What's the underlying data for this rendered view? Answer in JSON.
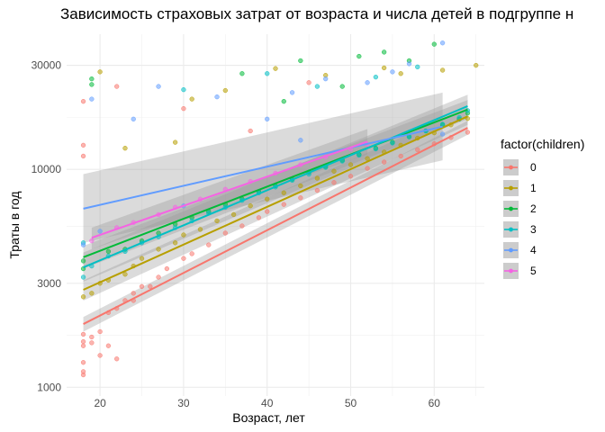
{
  "chart_data": {
    "type": "scatter",
    "title": "Зависимость страховых затрат от возраста и числа детей в подгруппе н",
    "xlabel": "Возраст, лет",
    "ylabel": "Траты в год",
    "xlim": [
      16,
      66
    ],
    "ylim_log10": [
      2.96,
      4.62
    ],
    "y_scale": "log10",
    "x_ticks": [
      20,
      30,
      40,
      50,
      60
    ],
    "x_tick_labels": [
      "20",
      "30",
      "40",
      "50",
      "60"
    ],
    "y_ticks": [
      1000,
      3000,
      10000,
      30000
    ],
    "y_tick_labels": [
      "1000",
      "3000",
      "10000",
      "30000"
    ],
    "grid": true,
    "legend": {
      "title": "factor(children)",
      "position": "right"
    },
    "series": [
      {
        "name": "0",
        "color": "#F8766D",
        "fit": {
          "x": [
            18,
            64
          ],
          "y": [
            1950,
            15500
          ]
        },
        "band": {
          "lower": [
            1800,
            14400
          ],
          "upper": [
            2100,
            16700
          ]
        },
        "points": [
          [
            18,
            1140
          ],
          [
            18,
            1180
          ],
          [
            18,
            1300
          ],
          [
            18,
            1550
          ],
          [
            18,
            1620
          ],
          [
            18,
            1750
          ],
          [
            18,
            11500
          ],
          [
            18,
            12900
          ],
          [
            18,
            20500
          ],
          [
            19,
            1600
          ],
          [
            19,
            1700
          ],
          [
            20,
            1800
          ],
          [
            20,
            1400
          ],
          [
            21,
            1550
          ],
          [
            21,
            2200
          ],
          [
            22,
            1350
          ],
          [
            22,
            2300
          ],
          [
            23,
            2500
          ],
          [
            24,
            2500
          ],
          [
            24,
            2700
          ],
          [
            25,
            2900
          ],
          [
            26,
            2900
          ],
          [
            27,
            3200
          ],
          [
            28,
            3500
          ],
          [
            30,
            3900
          ],
          [
            31,
            4100
          ],
          [
            33,
            4500
          ],
          [
            35,
            5100
          ],
          [
            37,
            5500
          ],
          [
            39,
            6000
          ],
          [
            40,
            6400
          ],
          [
            42,
            6900
          ],
          [
            44,
            7400
          ],
          [
            46,
            8000
          ],
          [
            48,
            8700
          ],
          [
            50,
            9300
          ],
          [
            52,
            10100
          ],
          [
            54,
            10800
          ],
          [
            56,
            11500
          ],
          [
            58,
            12300
          ],
          [
            60,
            13100
          ],
          [
            62,
            14000
          ],
          [
            64,
            14800
          ],
          [
            30,
            19000
          ],
          [
            45,
            25000
          ],
          [
            22,
            24000
          ],
          [
            38,
            15000
          ]
        ]
      },
      {
        "name": "1",
        "color": "#B79F00",
        "fit": {
          "x": [
            18,
            64
          ],
          "y": [
            2800,
            17500
          ]
        },
        "band": {
          "lower": [
            2500,
            16000
          ],
          "upper": [
            3100,
            19200
          ]
        },
        "points": [
          [
            18,
            2600
          ],
          [
            19,
            2700
          ],
          [
            20,
            28000
          ],
          [
            20,
            3000
          ],
          [
            21,
            3100
          ],
          [
            23,
            3300
          ],
          [
            24,
            3600
          ],
          [
            25,
            3900
          ],
          [
            27,
            4300
          ],
          [
            29,
            4600
          ],
          [
            30,
            5000
          ],
          [
            32,
            5300
          ],
          [
            34,
            5800
          ],
          [
            36,
            6200
          ],
          [
            38,
            6800
          ],
          [
            40,
            7300
          ],
          [
            42,
            7800
          ],
          [
            44,
            8400
          ],
          [
            46,
            9100
          ],
          [
            48,
            9800
          ],
          [
            50,
            10500
          ],
          [
            52,
            11200
          ],
          [
            54,
            12000
          ],
          [
            56,
            12900
          ],
          [
            58,
            13900
          ],
          [
            60,
            14700
          ],
          [
            62,
            16000
          ],
          [
            64,
            17100
          ],
          [
            23,
            12500
          ],
          [
            29,
            13300
          ],
          [
            41,
            29000
          ],
          [
            47,
            27000
          ],
          [
            54,
            29200
          ],
          [
            65,
            30000
          ],
          [
            61,
            28500
          ],
          [
            56,
            27500
          ],
          [
            35,
            23000
          ],
          [
            31,
            21000
          ]
        ]
      },
      {
        "name": "2",
        "color": "#00BA38",
        "fit": {
          "x": [
            18,
            64
          ],
          "y": [
            3950,
            18800
          ]
        },
        "band": {
          "lower": [
            3500,
            17000
          ],
          "upper": [
            4450,
            20800
          ]
        },
        "points": [
          [
            18,
            3500
          ],
          [
            18,
            3800
          ],
          [
            19,
            24500
          ],
          [
            19,
            26000
          ],
          [
            21,
            4200
          ],
          [
            23,
            4300
          ],
          [
            25,
            4700
          ],
          [
            27,
            5100
          ],
          [
            29,
            5600
          ],
          [
            31,
            6000
          ],
          [
            33,
            6400
          ],
          [
            35,
            6900
          ],
          [
            37,
            7300
          ],
          [
            39,
            7900
          ],
          [
            41,
            8400
          ],
          [
            43,
            9000
          ],
          [
            45,
            9700
          ],
          [
            47,
            10300
          ],
          [
            49,
            11000
          ],
          [
            51,
            11700
          ],
          [
            53,
            12500
          ],
          [
            55,
            13300
          ],
          [
            57,
            14100
          ],
          [
            59,
            15000
          ],
          [
            61,
            16000
          ],
          [
            63,
            17000
          ],
          [
            64,
            18100
          ],
          [
            37,
            27500
          ],
          [
            44,
            31500
          ],
          [
            51,
            33000
          ],
          [
            57,
            31500
          ],
          [
            60,
            37500
          ],
          [
            54,
            34500
          ],
          [
            49,
            24000
          ],
          [
            42,
            20500
          ]
        ]
      },
      {
        "name": "3",
        "color": "#00BFC4",
        "fit": {
          "x": [
            18,
            64
          ],
          "y": [
            3550,
            19500
          ]
        },
        "band": {
          "lower": [
            3050,
            17300
          ],
          "upper": [
            4150,
            22000
          ]
        },
        "points": [
          [
            18,
            3200
          ],
          [
            18,
            4600
          ],
          [
            19,
            3600
          ],
          [
            21,
            4000
          ],
          [
            23,
            4200
          ],
          [
            25,
            4600
          ],
          [
            27,
            4900
          ],
          [
            29,
            5400
          ],
          [
            31,
            5800
          ],
          [
            33,
            6300
          ],
          [
            35,
            6700
          ],
          [
            37,
            7200
          ],
          [
            39,
            7800
          ],
          [
            41,
            8300
          ],
          [
            43,
            8900
          ],
          [
            45,
            9500
          ],
          [
            47,
            10200
          ],
          [
            49,
            10900
          ],
          [
            51,
            11600
          ],
          [
            53,
            12400
          ],
          [
            55,
            13200
          ],
          [
            57,
            14100
          ],
          [
            59,
            15000
          ],
          [
            61,
            16100
          ],
          [
            63,
            17300
          ],
          [
            64,
            18600
          ],
          [
            40,
            27500
          ],
          [
            46,
            24000
          ],
          [
            53,
            26500
          ],
          [
            58,
            29500
          ],
          [
            30,
            23200
          ]
        ]
      },
      {
        "name": "4",
        "color": "#619CFF",
        "fit": {
          "x": [
            18,
            61
          ],
          "y": [
            6600,
            15700
          ]
        },
        "band": {
          "lower": [
            4600,
            11000
          ],
          "upper": [
            9500,
            22500
          ]
        },
        "points": [
          [
            18,
            4500
          ],
          [
            19,
            21000
          ],
          [
            24,
            17000
          ],
          [
            27,
            24000
          ],
          [
            34,
            21500
          ],
          [
            40,
            17000
          ],
          [
            43,
            22500
          ],
          [
            47,
            26000
          ],
          [
            52,
            25000
          ],
          [
            57,
            30500
          ],
          [
            61,
            38000
          ],
          [
            55,
            28000
          ],
          [
            30,
            6800
          ],
          [
            44,
            13600
          ],
          [
            61,
            14500
          ],
          [
            20,
            5200
          ]
        ]
      },
      {
        "name": "5",
        "color": "#F564E3",
        "fit": {
          "x": [
            19,
            52
          ],
          "y": [
            4850,
            13400
          ]
        },
        "band": {
          "lower": [
            4300,
            11700
          ],
          "upper": [
            5400,
            15300
          ]
        },
        "points": [
          [
            19,
            4700
          ],
          [
            22,
            5400
          ],
          [
            24,
            5700
          ],
          [
            27,
            6200
          ],
          [
            29,
            6700
          ],
          [
            32,
            7300
          ],
          [
            35,
            8100
          ],
          [
            38,
            8800
          ],
          [
            41,
            9600
          ],
          [
            44,
            10500
          ],
          [
            47,
            11400
          ],
          [
            50,
            12400
          ],
          [
            52,
            13000
          ]
        ]
      }
    ]
  }
}
